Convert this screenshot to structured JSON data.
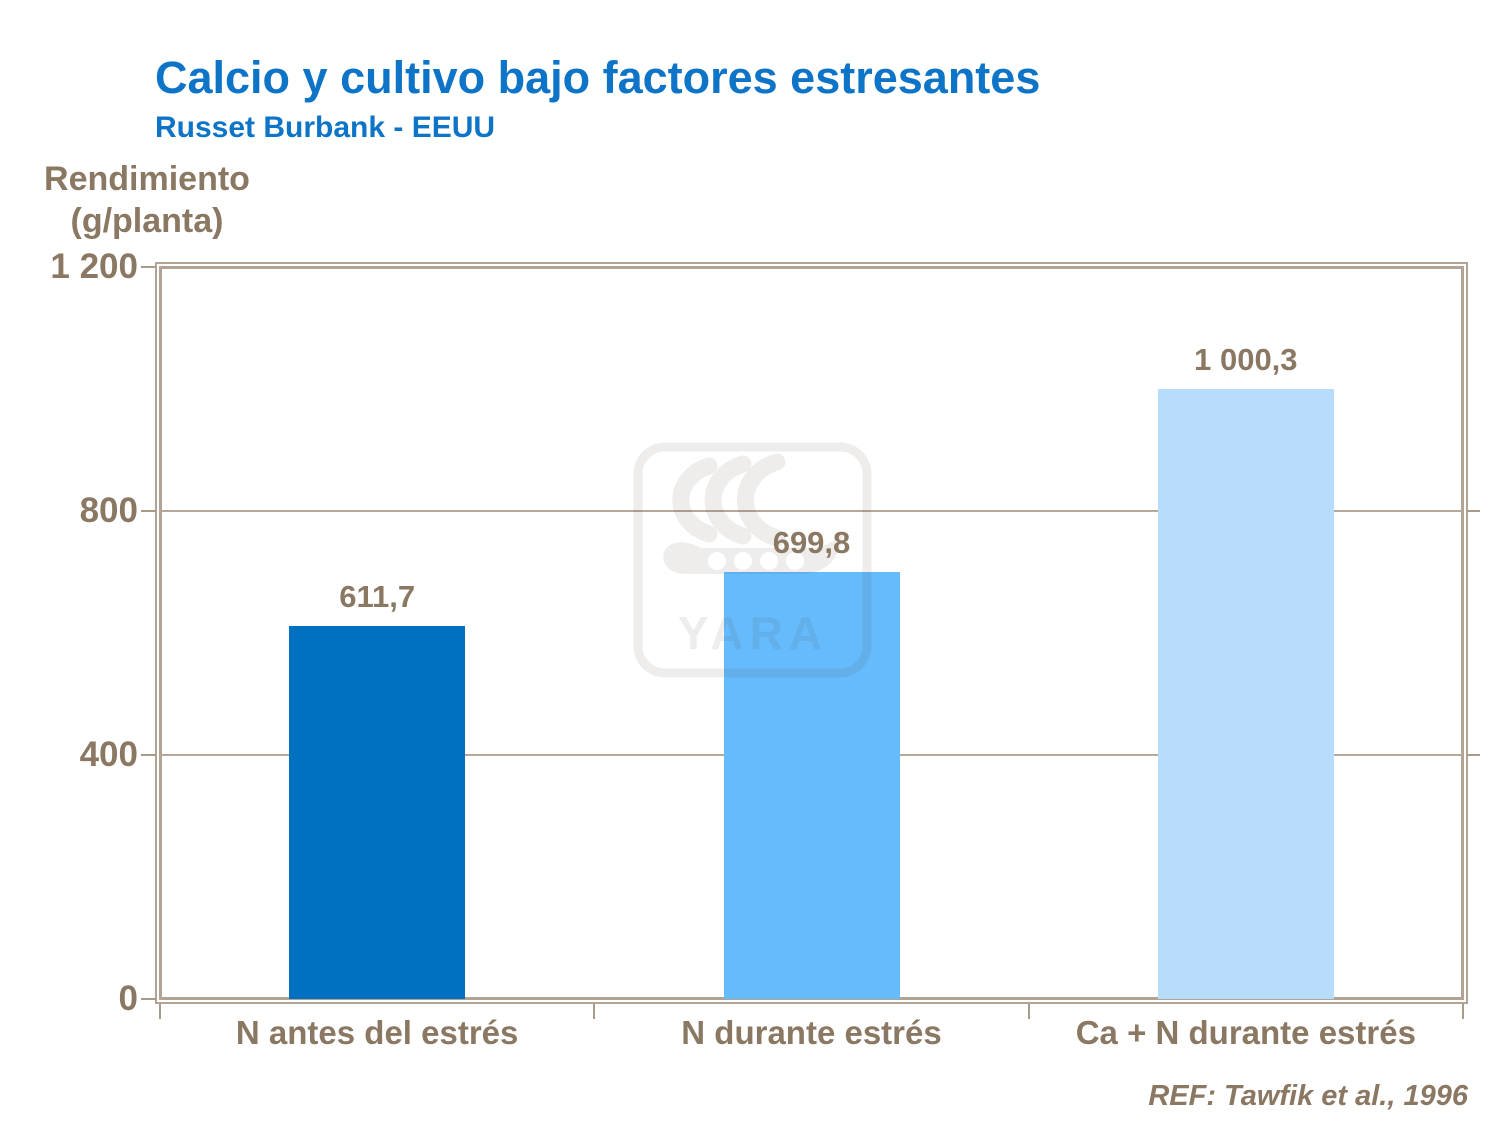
{
  "header": {
    "title": "Calcio y cultivo bajo factores estresantes",
    "subtitle": "Russet Burbank - EEUU"
  },
  "axis": {
    "y_title_line1": "Rendimiento",
    "y_title_line2": "(g/planta)"
  },
  "footer": {
    "reference": "REF: Tawfik et al., 1996"
  },
  "watermark": {
    "text": "YARA",
    "icon": "viking-ship-logo"
  },
  "colors": {
    "title_blue": "#0e74c8",
    "label_tan": "#8a7862",
    "frame_tan": "#b1a494",
    "grid_tan": "#b5a898",
    "bar_dark_blue": "#0071c1",
    "bar_medium_blue": "#66bbfc",
    "bar_light_blue": "#b8ddfc"
  },
  "chart_data": {
    "type": "bar",
    "title": "Calcio y cultivo bajo factores estresantes",
    "subtitle": "Russet Burbank - EEUU",
    "ylabel": "Rendimiento (g/planta)",
    "xlabel": "",
    "categories": [
      "N antes del estrés",
      "N durante estrés",
      "Ca + N durante estrés"
    ],
    "values": [
      611.7,
      699.8,
      1000.3
    ],
    "value_labels": [
      "611,7",
      "699,8",
      "1 000,3"
    ],
    "bar_colors": [
      "#0071c1",
      "#66bbfc",
      "#b8ddfc"
    ],
    "ylim": [
      0,
      1200
    ],
    "yticks": [
      {
        "value": 0,
        "label": "0"
      },
      {
        "value": 400,
        "label": "400"
      },
      {
        "value": 800,
        "label": "800"
      },
      {
        "value": 1200,
        "label": "1 200"
      }
    ],
    "grid": "horizontal gridlines at 400 and 800",
    "legend": "none",
    "reference": "REF: Tawfik et al., 1996"
  }
}
